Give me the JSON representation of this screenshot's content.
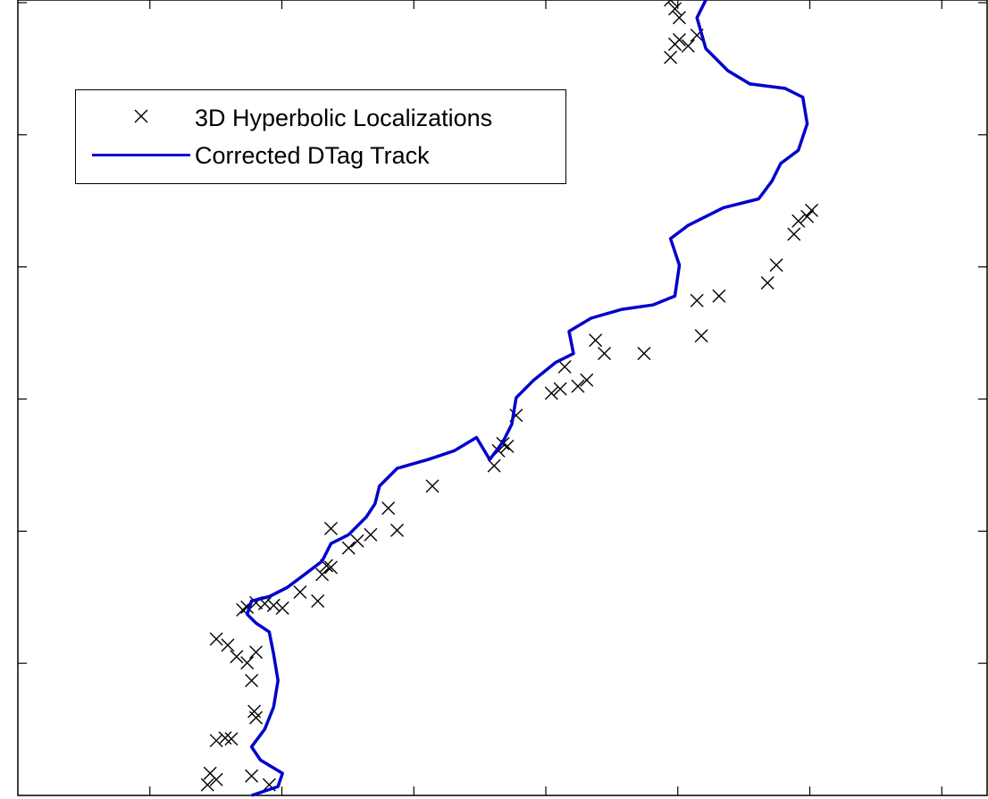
{
  "chart_data": {
    "type": "scatter",
    "title": "",
    "xlabel": "",
    "ylabel": "",
    "grid": false,
    "legend_position": "top-left",
    "xlim": [
      0,
      11
    ],
    "ylim": [
      0,
      9
    ],
    "series": [
      {
        "name": "3D Hyperbolic Localizations",
        "marker": "x",
        "color": "#000000",
        "points": [
          [
            2.15,
            0.12
          ],
          [
            2.18,
            0.25
          ],
          [
            2.25,
            0.18
          ],
          [
            2.65,
            0.22
          ],
          [
            2.85,
            0.12
          ],
          [
            2.25,
            0.62
          ],
          [
            2.35,
            0.65
          ],
          [
            2.42,
            0.64
          ],
          [
            2.7,
            0.88
          ],
          [
            2.68,
            0.95
          ],
          [
            2.65,
            1.3
          ],
          [
            2.6,
            1.5
          ],
          [
            2.48,
            1.57
          ],
          [
            2.38,
            1.7
          ],
          [
            2.25,
            1.77
          ],
          [
            2.7,
            1.62
          ],
          [
            2.55,
            2.1
          ],
          [
            2.6,
            2.13
          ],
          [
            2.7,
            2.18
          ],
          [
            2.8,
            2.17
          ],
          [
            2.9,
            2.15
          ],
          [
            3.0,
            2.12
          ],
          [
            3.2,
            2.3
          ],
          [
            3.4,
            2.2
          ],
          [
            3.45,
            2.5
          ],
          [
            3.5,
            2.6
          ],
          [
            3.55,
            2.58
          ],
          [
            3.55,
            3.02
          ],
          [
            3.75,
            2.8
          ],
          [
            3.85,
            2.88
          ],
          [
            4.0,
            2.95
          ],
          [
            4.3,
            3.0
          ],
          [
            4.2,
            3.25
          ],
          [
            4.7,
            3.5
          ],
          [
            5.4,
            3.73
          ],
          [
            5.45,
            3.9
          ],
          [
            5.5,
            3.98
          ],
          [
            5.55,
            3.95
          ],
          [
            5.65,
            4.3
          ],
          [
            6.05,
            4.55
          ],
          [
            6.15,
            4.6
          ],
          [
            6.2,
            4.85
          ],
          [
            6.35,
            4.63
          ],
          [
            6.45,
            4.7
          ],
          [
            6.55,
            5.15
          ],
          [
            6.65,
            5.0
          ],
          [
            7.1,
            5.0
          ],
          [
            7.75,
            5.2
          ],
          [
            7.7,
            5.6
          ],
          [
            7.95,
            5.65
          ],
          [
            8.5,
            5.8
          ],
          [
            8.6,
            6.0
          ],
          [
            8.8,
            6.35
          ],
          [
            8.85,
            6.5
          ],
          [
            8.95,
            6.55
          ],
          [
            9.0,
            6.62
          ],
          [
            7.4,
            8.35
          ],
          [
            7.45,
            8.5
          ],
          [
            7.5,
            8.55
          ],
          [
            7.6,
            8.48
          ],
          [
            7.7,
            8.6
          ],
          [
            7.4,
            9.0
          ],
          [
            7.45,
            8.9
          ],
          [
            7.5,
            8.8
          ]
        ]
      },
      {
        "name": "Corrected DTag Track",
        "marker": "line",
        "color": "#0000cc",
        "points": [
          [
            2.65,
            0.0
          ],
          [
            2.95,
            0.1
          ],
          [
            3.0,
            0.25
          ],
          [
            2.75,
            0.4
          ],
          [
            2.65,
            0.55
          ],
          [
            2.8,
            0.75
          ],
          [
            2.9,
            1.0
          ],
          [
            2.95,
            1.3
          ],
          [
            2.9,
            1.6
          ],
          [
            2.85,
            1.85
          ],
          [
            2.7,
            1.95
          ],
          [
            2.6,
            2.05
          ],
          [
            2.65,
            2.2
          ],
          [
            2.85,
            2.25
          ],
          [
            3.05,
            2.35
          ],
          [
            3.25,
            2.5
          ],
          [
            3.45,
            2.65
          ],
          [
            3.55,
            2.85
          ],
          [
            3.75,
            2.95
          ],
          [
            3.95,
            3.15
          ],
          [
            4.05,
            3.3
          ],
          [
            4.1,
            3.5
          ],
          [
            4.3,
            3.7
          ],
          [
            4.65,
            3.8
          ],
          [
            4.95,
            3.9
          ],
          [
            5.2,
            4.05
          ],
          [
            5.35,
            3.8
          ],
          [
            5.5,
            4.0
          ],
          [
            5.6,
            4.2
          ],
          [
            5.65,
            4.5
          ],
          [
            5.85,
            4.7
          ],
          [
            6.1,
            4.9
          ],
          [
            6.3,
            5.0
          ],
          [
            6.25,
            5.25
          ],
          [
            6.5,
            5.4
          ],
          [
            6.85,
            5.5
          ],
          [
            7.2,
            5.55
          ],
          [
            7.45,
            5.65
          ],
          [
            7.5,
            6.0
          ],
          [
            7.4,
            6.3
          ],
          [
            7.6,
            6.45
          ],
          [
            8.0,
            6.65
          ],
          [
            8.4,
            6.75
          ],
          [
            8.55,
            6.95
          ],
          [
            8.65,
            7.15
          ],
          [
            8.85,
            7.3
          ],
          [
            8.95,
            7.6
          ],
          [
            8.9,
            7.9
          ],
          [
            8.7,
            8.0
          ],
          [
            8.3,
            8.05
          ],
          [
            8.05,
            8.2
          ],
          [
            7.8,
            8.45
          ],
          [
            7.7,
            8.8
          ],
          [
            7.8,
            9.0
          ]
        ]
      }
    ]
  },
  "legend": {
    "items": [
      {
        "label": "3D Hyperbolic Localizations"
      },
      {
        "label": "Corrected DTag Track"
      }
    ]
  }
}
